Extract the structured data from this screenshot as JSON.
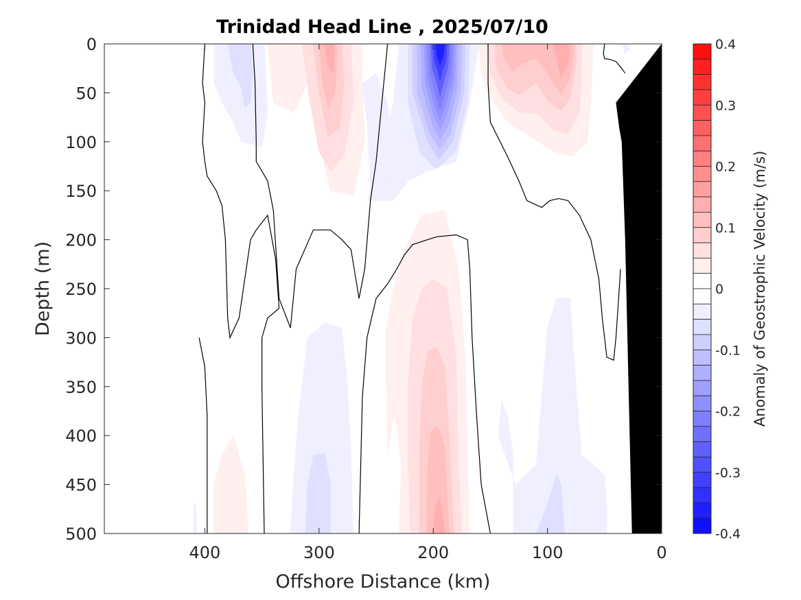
{
  "chart_data": {
    "type": "heatmap",
    "subtype": "filled-contour section",
    "title": "Trinidad Head Line , 2025/07/10",
    "xlabel": "Offshore Distance (km)",
    "ylabel": "Depth (m)",
    "xlim": [
      488,
      0
    ],
    "ylim": [
      0,
      500
    ],
    "x_reversed": true,
    "y_reversed": true,
    "xticks": [
      400,
      300,
      200,
      100,
      0
    ],
    "xtick_labels": [
      "400",
      "300",
      "200",
      "100",
      "0"
    ],
    "yticks": [
      0,
      50,
      100,
      150,
      200,
      250,
      300,
      350,
      400,
      450,
      500
    ],
    "ytick_labels": [
      "0",
      "50",
      "100",
      "150",
      "200",
      "250",
      "300",
      "350",
      "400",
      "450",
      "500"
    ],
    "grid": false,
    "colorbar": {
      "label": "Anomaly of Geostrophic Velocity (m/s)",
      "range": [
        -0.4,
        0.4
      ],
      "level_step": 0.025,
      "ticks": [
        0.4,
        0.3,
        0.2,
        0.1,
        0,
        -0.1,
        -0.2,
        -0.3,
        -0.4
      ],
      "tick_labels": [
        "0.4",
        "0.3",
        "0.2",
        "0.1",
        "0",
        "-0.1",
        "-0.2",
        "-0.3",
        "-0.4"
      ],
      "positive_color": "#ff0000",
      "zero_color": "#ffffff",
      "negative_color": "#0000ff",
      "placement": "right"
    },
    "bathymetry_color": "#000000",
    "features": [
      {
        "name": "surface-blue-core",
        "sign": "negative",
        "center_km": 192,
        "depth_range_m": [
          0,
          160
        ],
        "peak_value": -0.4
      },
      {
        "name": "surface-red-east",
        "sign": "positive",
        "center_km": 82,
        "depth_range_m": [
          0,
          115
        ],
        "peak_value": 0.15
      },
      {
        "name": "surface-red-mid-east",
        "sign": "positive",
        "center_km": 135,
        "depth_range_m": [
          0,
          90
        ],
        "peak_value": 0.1
      },
      {
        "name": "surface-red-west",
        "sign": "positive",
        "center_km": 295,
        "depth_range_m": [
          0,
          155
        ],
        "peak_value": 0.125
      },
      {
        "name": "surface-blue-west",
        "sign": "negative",
        "center_km": 370,
        "depth_range_m": [
          0,
          105
        ],
        "peak_value": -0.05
      },
      {
        "name": "deep-red-core",
        "sign": "positive",
        "center_km": 198,
        "depth_range_m": [
          175,
          500
        ],
        "peak_value": 0.125
      },
      {
        "name": "deep-blue-mid",
        "sign": "negative",
        "center_km": 295,
        "depth_range_m": [
          280,
          500
        ],
        "peak_value": -0.05
      },
      {
        "name": "deep-blue-east",
        "sign": "negative",
        "center_km": 90,
        "depth_range_m": [
          255,
          500
        ],
        "peak_value": -0.05
      },
      {
        "name": "deep-red-west",
        "sign": "positive",
        "center_km": 375,
        "depth_range_m": [
          400,
          500
        ],
        "peak_value": 0.025
      }
    ]
  }
}
